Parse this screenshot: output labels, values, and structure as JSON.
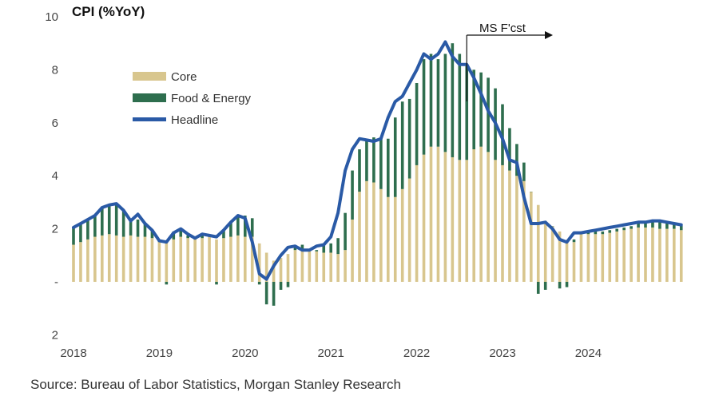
{
  "chart_data": {
    "type": "bar",
    "title": "CPI (%YoY)",
    "xlabel": "",
    "ylabel": "",
    "ylim": [
      -2,
      10
    ],
    "y_ticks": [
      {
        "value": 10,
        "label": "10"
      },
      {
        "value": 8,
        "label": "8"
      },
      {
        "value": 6,
        "label": "6"
      },
      {
        "value": 4,
        "label": "4"
      },
      {
        "value": 2,
        "label": "2"
      },
      {
        "value": 0,
        "label": "-"
      },
      {
        "value": -2,
        "label": "2"
      }
    ],
    "x_ticks": [
      {
        "index": 0,
        "label": "2018"
      },
      {
        "index": 12,
        "label": "2019"
      },
      {
        "index": 24,
        "label": "2020"
      },
      {
        "index": 36,
        "label": "2021"
      },
      {
        "index": 48,
        "label": "2022"
      },
      {
        "index": 60,
        "label": "2023"
      },
      {
        "index": 72,
        "label": "2024"
      }
    ],
    "legend_position": "top-left",
    "forecast_start_index": 55,
    "annotation": "MS F'cst",
    "series": [
      {
        "name": "Core",
        "type": "bar",
        "color": "#d8c68e",
        "values": [
          1.4,
          1.5,
          1.6,
          1.7,
          1.75,
          1.8,
          1.75,
          1.7,
          1.75,
          1.7,
          1.7,
          1.65,
          1.5,
          1.5,
          1.6,
          1.7,
          1.65,
          1.6,
          1.65,
          1.7,
          1.6,
          1.65,
          1.7,
          1.75,
          1.7,
          1.7,
          1.45,
          1.1,
          0.8,
          0.9,
          1.05,
          1.2,
          1.25,
          1.2,
          1.15,
          1.1,
          1.1,
          1.05,
          1.2,
          2.35,
          3.4,
          3.8,
          3.75,
          3.5,
          3.2,
          3.2,
          3.5,
          3.9,
          4.4,
          4.8,
          5.1,
          5.1,
          4.9,
          4.7,
          4.6,
          4.6,
          5.0,
          5.1,
          4.9,
          4.6,
          4.4,
          4.2,
          4.0,
          3.8,
          3.4,
          2.9,
          2.3,
          2.1,
          1.9,
          1.5,
          1.5,
          1.8,
          1.8,
          1.8,
          1.8,
          1.85,
          1.9,
          1.95,
          2.0,
          2.05,
          2.05,
          2.05,
          2.0,
          2.0,
          2.0,
          1.95
        ]
      },
      {
        "name": "Food & Energy",
        "type": "bar",
        "color": "#2e6e4e",
        "values": [
          0.65,
          0.7,
          0.75,
          0.8,
          1.05,
          1.05,
          1.15,
          1.0,
          0.6,
          0.65,
          0.5,
          0.3,
          0.05,
          -0.1,
          0.3,
          0.25,
          0.1,
          0.05,
          0.1,
          0.05,
          -0.1,
          0.3,
          0.55,
          0.7,
          0.8,
          0.7,
          -0.1,
          -0.85,
          -0.9,
          -0.3,
          -0.2,
          0.15,
          0.15,
          0.0,
          0.05,
          0.3,
          0.35,
          0.6,
          1.4,
          1.85,
          1.6,
          1.55,
          1.7,
          1.9,
          2.2,
          3.0,
          3.3,
          3.0,
          3.1,
          3.6,
          3.5,
          3.3,
          3.7,
          4.3,
          4.0,
          3.6,
          3.0,
          2.8,
          2.8,
          2.7,
          2.3,
          1.6,
          1.2,
          0.7,
          0.0,
          -0.45,
          -0.3,
          0.0,
          -0.25,
          -0.2,
          0.1,
          0.1,
          0.1,
          0.1,
          0.1,
          0.1,
          0.1,
          0.1,
          0.1,
          0.15,
          0.2,
          0.2,
          0.25,
          0.25,
          0.2,
          0.2
        ]
      },
      {
        "name": "Headline",
        "type": "line",
        "color": "#2a5aa6",
        "values": [
          2.05,
          2.2,
          2.35,
          2.5,
          2.8,
          2.9,
          2.95,
          2.7,
          2.3,
          2.55,
          2.2,
          1.95,
          1.55,
          1.5,
          1.85,
          2.0,
          1.8,
          1.65,
          1.8,
          1.75,
          1.7,
          1.95,
          2.25,
          2.5,
          2.4,
          1.5,
          0.3,
          0.1,
          0.6,
          1.0,
          1.3,
          1.35,
          1.2,
          1.2,
          1.35,
          1.4,
          1.7,
          2.6,
          4.2,
          5.0,
          5.4,
          5.35,
          5.3,
          5.4,
          6.2,
          6.8,
          7.0,
          7.5,
          8.0,
          8.6,
          8.4,
          8.6,
          9.05,
          8.5,
          8.2,
          8.2,
          7.7,
          7.1,
          6.45,
          6.0,
          5.4,
          4.6,
          4.5,
          3.2,
          2.2,
          2.2,
          2.25,
          2.0,
          1.6,
          1.5,
          1.85,
          1.85,
          1.9,
          1.95,
          2.0,
          2.05,
          2.1,
          2.15,
          2.2,
          2.25,
          2.25,
          2.3,
          2.3,
          2.25,
          2.2,
          2.15
        ]
      }
    ]
  },
  "source": "Source: Bureau of Labor Statistics, Morgan Stanley Research"
}
